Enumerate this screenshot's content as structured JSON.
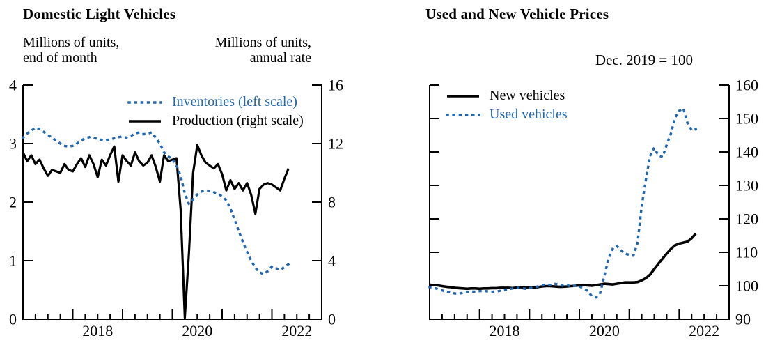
{
  "colors": {
    "blue": "#2267b2",
    "black": "#000000",
    "background": "#ffffff"
  },
  "charts": [
    {
      "title": "Domestic Light Vehicles",
      "left_axis_header": {
        "line1": "Millions of units,",
        "line2": "end of month"
      },
      "right_axis_header": {
        "line1": "Millions of units,",
        "line2": "annual rate"
      },
      "legend": [
        {
          "label": "Inventories (left scale)",
          "style": "dotted",
          "color_key": "blue"
        },
        {
          "label": "Production (right scale)",
          "style": "solid",
          "color_key": "black"
        }
      ]
    },
    {
      "title": "Used and New Vehicle Prices",
      "corner_note": "Dec. 2019 = 100",
      "legend": [
        {
          "label": "New vehicles",
          "style": "solid",
          "color_key": "black"
        },
        {
          "label": "Used vehicles",
          "style": "dotted",
          "color_key": "blue"
        }
      ]
    }
  ],
  "chart_data": [
    {
      "type": "line",
      "title": "Domestic Light Vehicles",
      "frequency": "monthly",
      "x_start": "2017-01",
      "x_end": "2022-05",
      "x_axis_years": {
        "first": 2017,
        "last": 2023,
        "labels": [
          "2018",
          "2020",
          "2022"
        ],
        "minor_tick_interval_months": 3
      },
      "left_axis": {
        "label": "Millions of units, end of month",
        "range": [
          0,
          4
        ],
        "ticks": [
          0,
          1,
          2,
          3,
          4
        ]
      },
      "right_axis": {
        "label": "Millions of units, annual rate",
        "range": [
          0,
          16
        ],
        "ticks": [
          0,
          4,
          8,
          12,
          16
        ]
      },
      "grid": false,
      "series": [
        {
          "name": "Inventories (left scale)",
          "axis": "left",
          "style": "dotted",
          "color_key": "blue",
          "values": [
            3.1,
            3.17,
            3.22,
            3.27,
            3.25,
            3.2,
            3.15,
            3.1,
            3.05,
            3.0,
            2.96,
            2.95,
            2.96,
            3.0,
            3.05,
            3.09,
            3.11,
            3.1,
            3.08,
            3.06,
            3.05,
            3.07,
            3.09,
            3.11,
            3.12,
            3.1,
            3.13,
            3.17,
            3.19,
            3.16,
            3.17,
            3.19,
            3.1,
            3.0,
            2.85,
            2.78,
            2.74,
            2.62,
            2.45,
            2.15,
            1.97,
            2.05,
            2.13,
            2.18,
            2.2,
            2.19,
            2.17,
            2.14,
            2.1,
            2.03,
            1.89,
            1.7,
            1.51,
            1.32,
            1.15,
            1.0,
            0.88,
            0.8,
            0.77,
            0.82,
            0.9,
            0.87,
            0.84,
            0.89,
            0.94
          ]
        },
        {
          "name": "Production (right scale)",
          "axis": "right",
          "style": "solid",
          "color_key": "black",
          "values": [
            11.4,
            10.8,
            11.2,
            10.6,
            10.9,
            10.3,
            9.8,
            10.2,
            10.1,
            10.0,
            10.6,
            10.2,
            10.1,
            10.6,
            11.0,
            10.4,
            11.2,
            10.6,
            9.7,
            10.9,
            10.5,
            11.2,
            11.8,
            9.4,
            11.2,
            10.8,
            10.5,
            11.4,
            10.8,
            10.5,
            10.7,
            11.2,
            10.4,
            9.4,
            11.2,
            10.8,
            10.9,
            11.0,
            7.5,
            0.1,
            4.5,
            10.0,
            11.9,
            11.2,
            10.7,
            10.5,
            10.3,
            10.6,
            9.9,
            8.8,
            9.5,
            8.9,
            9.3,
            8.8,
            9.3,
            8.5,
            7.2,
            8.9,
            9.2,
            9.3,
            9.2,
            9.0,
            8.8,
            9.6,
            10.3
          ]
        }
      ]
    },
    {
      "type": "line",
      "title": "Used and New Vehicle Prices",
      "frequency": "monthly",
      "x_start": "2017-01",
      "x_end": "2022-05",
      "note": "Dec. 2019 = 100",
      "x_axis_years": {
        "first": 2017,
        "last": 2023,
        "labels": [
          "2018",
          "2020",
          "2022"
        ],
        "minor_tick_interval_months": 3
      },
      "left_axis": {
        "label": "",
        "range": [
          90,
          160
        ],
        "ticks": [
          90,
          100,
          110,
          120,
          130,
          140,
          150,
          160
        ],
        "labels": false
      },
      "right_axis": {
        "label": "Index, Dec. 2019 = 100",
        "range": [
          90,
          160
        ],
        "ticks": [
          90,
          100,
          110,
          120,
          130,
          140,
          150,
          160
        ]
      },
      "grid": false,
      "series": [
        {
          "name": "New vehicles",
          "axis": "right",
          "style": "solid",
          "color_key": "black",
          "values": [
            100.3,
            100.2,
            100.1,
            99.9,
            99.7,
            99.6,
            99.4,
            99.3,
            99.2,
            99.1,
            99.2,
            99.2,
            99.1,
            99.2,
            99.2,
            99.3,
            99.3,
            99.4,
            99.4,
            99.4,
            99.3,
            99.5,
            99.6,
            99.5,
            99.6,
            99.5,
            99.6,
            99.8,
            99.9,
            99.9,
            99.8,
            99.7,
            99.7,
            99.8,
            99.9,
            100.0,
            100.1,
            100.2,
            100.1,
            100.0,
            100.2,
            100.4,
            100.6,
            100.5,
            100.4,
            100.6,
            100.8,
            101.0,
            101.0,
            101.0,
            101.1,
            101.6,
            102.3,
            103.3,
            105.0,
            106.6,
            108.1,
            109.6,
            111.0,
            112.1,
            112.6,
            112.9,
            113.2,
            114.2,
            115.6
          ]
        },
        {
          "name": "Used vehicles",
          "axis": "right",
          "style": "dotted",
          "color_key": "blue",
          "values": [
            99.6,
            99.4,
            99.0,
            98.6,
            98.3,
            98.0,
            97.7,
            97.6,
            97.9,
            98.1,
            98.3,
            98.2,
            98.4,
            98.5,
            98.3,
            98.2,
            98.3,
            98.5,
            98.8,
            99.0,
            99.2,
            99.4,
            99.3,
            99.1,
            99.3,
            99.5,
            99.8,
            100.1,
            100.3,
            100.2,
            100.6,
            100.4,
            100.0,
            100.2,
            99.8,
            100.0,
            99.8,
            99.2,
            98.5,
            96.9,
            96.5,
            97.9,
            102.8,
            108.2,
            111.0,
            111.9,
            110.6,
            109.6,
            109.2,
            109.0,
            112.9,
            123.9,
            131.8,
            138.8,
            141.2,
            139.0,
            138.5,
            142.1,
            145.5,
            150.2,
            152.3,
            153.0,
            148.6,
            146.5,
            146.8
          ]
        }
      ]
    }
  ]
}
